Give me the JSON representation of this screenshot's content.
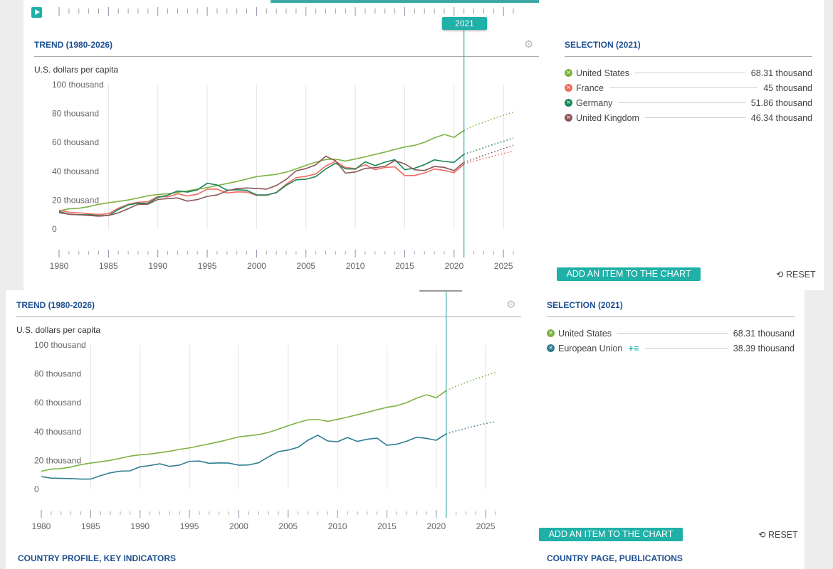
{
  "timeline": {
    "play_icon": "play-icon",
    "current_year": "2021"
  },
  "panels": [
    {
      "trend_title": "TREND (1980-2026)",
      "unit": "U.S. dollars per capita",
      "selection_title": "SELECTION (2021)",
      "items": [
        {
          "label": "United States",
          "value": "68.31 thousand",
          "color": "#7cb342"
        },
        {
          "label": "France",
          "value": "45 thousand",
          "color": "#ef6a5f"
        },
        {
          "label": "Germany",
          "value": "51.86 thousand",
          "color": "#1b8556"
        },
        {
          "label": "United Kingdom",
          "value": "46.34 thousand",
          "color": "#8b5658"
        }
      ],
      "add_button": "ADD AN ITEM TO THE CHART",
      "reset": "RESET"
    },
    {
      "trend_title": "TREND (1980-2026)",
      "unit": "U.S. dollars per capita",
      "selection_title": "SELECTION (2021)",
      "items": [
        {
          "label": "United States",
          "value": "68.31 thousand",
          "color": "#7cb342"
        },
        {
          "label": "European Union",
          "value": "38.39 thousand",
          "color": "#2f7d91",
          "extra": "+≡"
        }
      ],
      "add_button": "ADD AN ITEM TO THE CHART",
      "reset": "RESET"
    }
  ],
  "footer": {
    "left": "COUNTRY PROFILE, KEY INDICATORS",
    "right": "COUNTRY PAGE, PUBLICATIONS"
  },
  "chart_data": [
    {
      "type": "line",
      "ylabel": "U.S. dollars per capita",
      "ylim": [
        0,
        100
      ],
      "yticks": [
        "0",
        "20 thousand",
        "40 thousand",
        "60 thousand",
        "80 thousand",
        "100 thousand"
      ],
      "xticks": [
        "1980",
        "1985",
        "1990",
        "1995",
        "2000",
        "2005",
        "2010",
        "2015",
        "2020",
        "2025"
      ],
      "xlim": [
        1980,
        2026
      ],
      "grid": true,
      "selected_year": 2021,
      "series": [
        {
          "name": "United States",
          "color": "#7cb342",
          "start": 1980,
          "values": [
            12.5,
            14,
            14.4,
            15.5,
            17.1,
            18.2,
            19.1,
            20.1,
            21.5,
            23,
            23.9,
            24.4,
            25.4,
            26.4,
            27.7,
            28.7,
            30.1,
            31.5,
            32.9,
            34.6,
            36.3,
            37.1,
            37.9,
            39.4,
            41.7,
            44.1,
            46.3,
            48.1,
            48.4,
            47.1,
            48.5,
            50,
            51.7,
            53.3,
            55.1,
            56.8,
            57.9,
            60.1,
            63.1,
            65.5,
            63.5,
            68.31
          ],
          "forecast": [
            71.5,
            74,
            76.5,
            78.8,
            81
          ]
        },
        {
          "name": "France",
          "color": "#ef6a5f",
          "start": 1980,
          "values": [
            13.1,
            11.6,
            11.2,
            10.6,
            10.1,
            10.6,
            14.4,
            17.1,
            18.6,
            18.9,
            22.5,
            22.3,
            24.4,
            22.9,
            24.1,
            27.6,
            27.6,
            25,
            25.7,
            25.6,
            23.3,
            23.3,
            25.4,
            31.1,
            35.6,
            36.5,
            38.2,
            43.6,
            46.9,
            42.6,
            41.9,
            44.5,
            41.1,
            42.6,
            43.1,
            37,
            37.1,
            38.8,
            41.6,
            40.6,
            39,
            45
          ],
          "forecast": [
            47,
            48.8,
            50.6,
            52.3,
            54
          ]
        },
        {
          "name": "Germany",
          "color": "#1b8556",
          "start": 1980,
          "values": [
            12.1,
            10.2,
            9.9,
            9.9,
            9.3,
            9.4,
            13.5,
            16.7,
            17.9,
            17.8,
            21.9,
            23.4,
            26.4,
            25.6,
            27.1,
            31.7,
            30.5,
            26.9,
            27.2,
            26.8,
            23.6,
            23.6,
            25.2,
            30.3,
            34.1,
            34.5,
            36.3,
            41.6,
            45.6,
            41.7,
            41.5,
            46.6,
            43.9,
            46.3,
            48,
            41.1,
            42.1,
            44.6,
            47.9,
            46.8,
            46.2,
            51.86
          ],
          "forecast": [
            54,
            56.3,
            58.6,
            60.8,
            63
          ]
        },
        {
          "name": "United Kingdom",
          "color": "#8b5658",
          "start": 1980,
          "values": [
            11.3,
            10.3,
            9.9,
            9.4,
            8.9,
            9.4,
            11.2,
            14.1,
            17.1,
            17.2,
            20.5,
            21.1,
            21.5,
            19.3,
            20.4,
            22.6,
            23.6,
            26.4,
            28,
            28.4,
            28.1,
            27.6,
            30.1,
            34.4,
            40.3,
            41.9,
            44.5,
            50.4,
            47.3,
            38.7,
            39.5,
            42,
            42.5,
            43.4,
            47.4,
            45.1,
            41,
            40.5,
            43.3,
            42.7,
            40.4,
            46.34
          ],
          "forecast": [
            48.5,
            51,
            53.3,
            55.7,
            58
          ]
        }
      ]
    },
    {
      "type": "line",
      "ylabel": "U.S. dollars per capita",
      "ylim": [
        0,
        100
      ],
      "yticks": [
        "0",
        "20 thousand",
        "40 thousand",
        "60 thousand",
        "80 thousand",
        "100 thousand"
      ],
      "xticks": [
        "1980",
        "1985",
        "1990",
        "1995",
        "2000",
        "2005",
        "2010",
        "2015",
        "2020",
        "2025"
      ],
      "xlim": [
        1980,
        2026
      ],
      "grid": true,
      "selected_year": 2021,
      "series": [
        {
          "name": "United States",
          "color": "#7cb342",
          "start": 1980,
          "values": [
            12.5,
            14,
            14.4,
            15.5,
            17.1,
            18.2,
            19.1,
            20.1,
            21.5,
            23,
            23.9,
            24.4,
            25.4,
            26.4,
            27.7,
            28.7,
            30.1,
            31.5,
            32.9,
            34.6,
            36.3,
            37.1,
            37.9,
            39.4,
            41.7,
            44.1,
            46.3,
            48.1,
            48.4,
            47.1,
            48.5,
            50,
            51.7,
            53.3,
            55.1,
            56.8,
            57.9,
            60.1,
            63.1,
            65.5,
            63.5,
            68.31
          ],
          "forecast": [
            71.5,
            74,
            76.5,
            78.8,
            81
          ]
        },
        {
          "name": "European Union",
          "color": "#2f7d91",
          "start": 1980,
          "values": [
            8.8,
            7.8,
            7.6,
            7.4,
            7.1,
            7.1,
            9.5,
            11.5,
            12.6,
            12.8,
            15.6,
            16.5,
            17.7,
            15.9,
            16.8,
            19.4,
            19.6,
            18,
            18.3,
            18.2,
            16.7,
            16.9,
            18.4,
            22.5,
            26.1,
            27.2,
            29.1,
            34,
            37.5,
            33.5,
            33,
            35.9,
            33.2,
            34.7,
            35.5,
            30.5,
            31.3,
            33.3,
            36.1,
            35.3,
            34,
            38.39
          ],
          "forecast": [
            40.5,
            42.2,
            44,
            45.6,
            47
          ]
        }
      ]
    }
  ]
}
